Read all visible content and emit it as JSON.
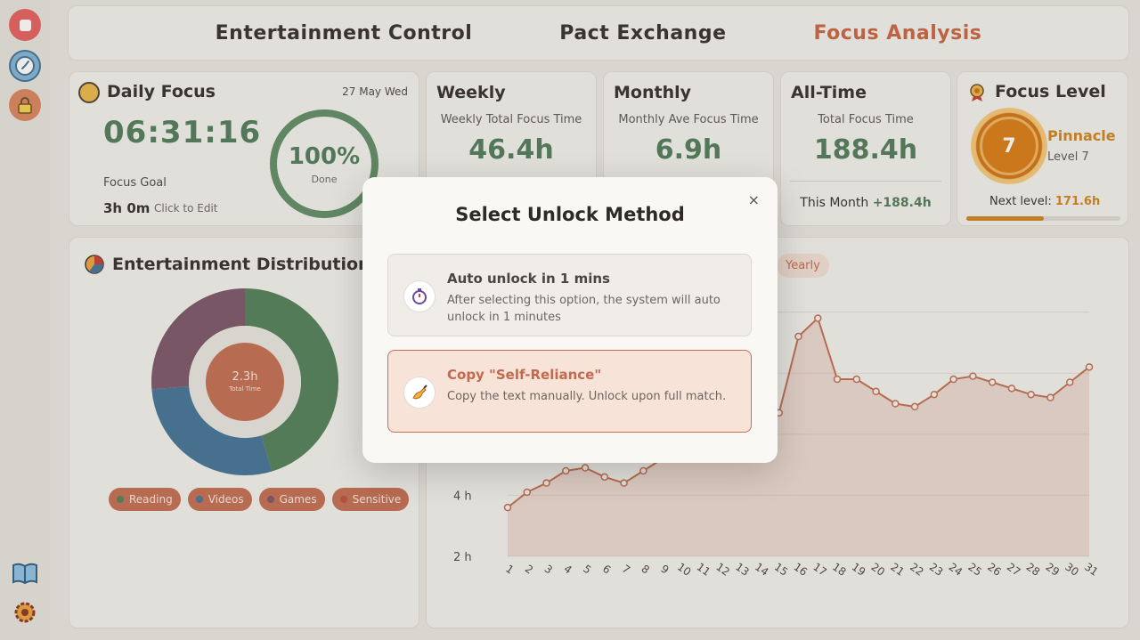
{
  "nav": {
    "tabs": [
      {
        "label": "Entertainment Control"
      },
      {
        "label": "Pact Exchange"
      },
      {
        "label": "Focus Analysis",
        "active": true
      }
    ]
  },
  "daily": {
    "title": "Daily Focus",
    "date": "27 May Wed",
    "time": "06:31:16",
    "goal_label": "Focus Goal",
    "goal_value": "3h 0m",
    "goal_edit": "Click to Edit",
    "percent": "100%",
    "percent_label": "Done"
  },
  "weekly": {
    "title": "Weekly",
    "label": "Weekly Total Focus Time",
    "value": "46.4h"
  },
  "monthly": {
    "title": "Monthly",
    "label": "Monthly Ave Focus Time",
    "value": "6.9h"
  },
  "alltime": {
    "title": "All-Time",
    "label": "Total Focus Time",
    "value": "188.4h",
    "this_month_label": "This Month",
    "this_month_value": "+188.4h"
  },
  "level": {
    "title": "Focus Level",
    "number": "7",
    "rank": "Pinnacle",
    "level_text": "Level 7",
    "next_label": "Next level:",
    "next_value": "171.6h",
    "progress": 0.5
  },
  "distribution": {
    "title": "Entertainment Distribution",
    "center_value": "2.3h",
    "center_label": "Total Time",
    "legend": [
      {
        "label": "Reading",
        "color": "#4f7d57"
      },
      {
        "label": "Videos",
        "color": "#3f6f96"
      },
      {
        "label": "Games",
        "color": "#7a5266"
      },
      {
        "label": "Sensitive",
        "color": "#b94e3a"
      }
    ]
  },
  "chart_controls": {
    "yearly": "Yearly"
  },
  "chart_data": {
    "type": "area",
    "x": [
      1,
      2,
      3,
      4,
      5,
      6,
      7,
      8,
      9,
      10,
      11,
      12,
      13,
      14,
      15,
      16,
      17,
      18,
      19,
      20,
      21,
      22,
      23,
      24,
      25,
      26,
      27,
      28,
      29,
      30,
      31
    ],
    "series": [
      {
        "values": [
          3.6,
          4.1,
          4.4,
          4.8,
          4.9,
          4.6,
          4.4,
          4.8,
          5.2,
          5.6,
          6.0,
          6.2,
          6.4,
          6.5,
          6.7,
          9.2,
          9.8,
          7.8,
          7.8,
          7.4,
          7.0,
          6.9,
          7.3,
          7.8,
          7.9,
          7.7,
          7.5,
          7.3,
          7.2,
          7.7,
          8.2
        ]
      }
    ],
    "yticks": [
      "2 h",
      "4 h"
    ],
    "xlabels": [
      "1",
      "2",
      "3",
      "4",
      "5",
      "6",
      "7",
      "8",
      "9",
      "10",
      "11",
      "12",
      "13",
      "14",
      "15",
      "16",
      "17",
      "18",
      "19",
      "20",
      "21",
      "22",
      "23",
      "24",
      "25",
      "26",
      "27",
      "28",
      "29",
      "30",
      "31"
    ],
    "color": "#c26a4e"
  },
  "modal": {
    "title": "Select Unlock Method",
    "close": "×",
    "options": [
      {
        "title": "Auto unlock in 1 mins",
        "desc": "After selecting this option, the system will auto unlock in 1 minutes",
        "icon": "stopwatch-icon"
      },
      {
        "title": "Copy \"Self-Reliance\"",
        "desc": "Copy the text manually. Unlock upon full match.",
        "icon": "writing-hand-icon"
      }
    ]
  }
}
